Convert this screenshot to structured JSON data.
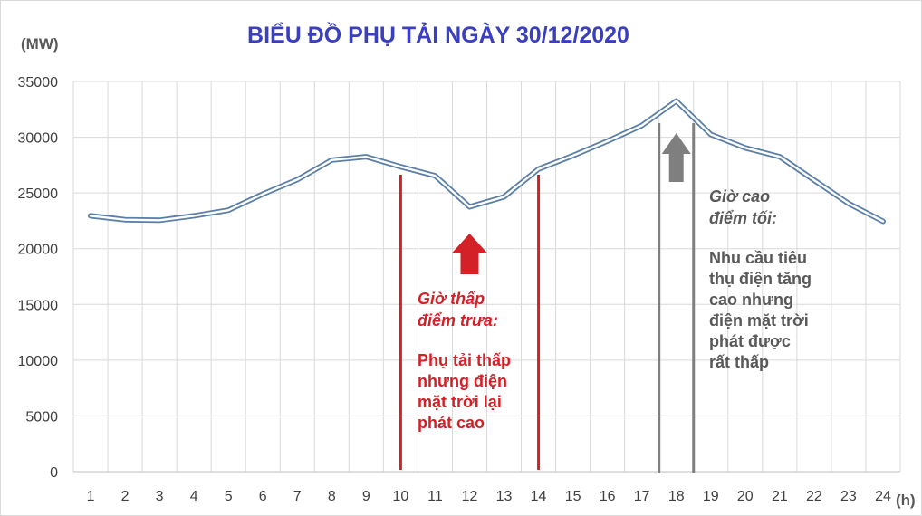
{
  "chart_data": {
    "type": "line",
    "title": "BIỂU ĐỒ PHỤ TẢI NGÀY 30/12/2020",
    "ylabel": "(MW)",
    "xlabel": "(h)",
    "ylim": [
      0,
      35000
    ],
    "yticks": [
      0,
      5000,
      10000,
      15000,
      20000,
      25000,
      30000,
      35000
    ],
    "categories": [
      "1",
      "2",
      "3",
      "4",
      "5",
      "6",
      "7",
      "8",
      "9",
      "10",
      "11",
      "12",
      "13",
      "14",
      "15",
      "16",
      "17",
      "18",
      "19",
      "20",
      "21",
      "22",
      "23",
      "24"
    ],
    "series": [
      {
        "values": [
          22950,
          22600,
          22550,
          22950,
          23450,
          24900,
          26200,
          27950,
          28250,
          27350,
          26550,
          23750,
          24650,
          27150,
          28350,
          29650,
          31050,
          33250,
          30250,
          29050,
          28250,
          26150,
          24050,
          22450
        ]
      }
    ],
    "grid": true,
    "legend": "none",
    "colors": {
      "title": "#3a3fbf",
      "series_line": "#5b7fa6",
      "midday": "#d42027",
      "evening": "#7f7f7f",
      "grid": "#d9d9d9"
    },
    "annotations": {
      "midday": {
        "from": 10,
        "to": 14,
        "heading": [
          "Giờ thấp",
          "điểm trưa:"
        ],
        "body": [
          "Phụ tải thấp",
          "nhưng điện",
          "mặt trời lại",
          "phát cao"
        ]
      },
      "evening": {
        "from": 17.5,
        "to": 18.5,
        "heading": [
          "Giờ cao",
          "điểm tối:"
        ],
        "body": [
          "Nhu cầu tiêu",
          "thụ điện tăng",
          "cao nhưng",
          "điện mặt trời",
          "phát được",
          "rất thấp"
        ]
      }
    }
  }
}
